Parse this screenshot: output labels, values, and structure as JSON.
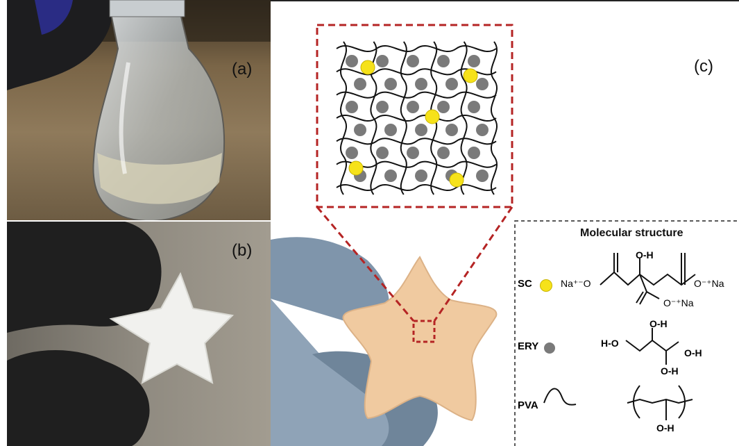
{
  "panels": {
    "a": {
      "label": "(a)"
    },
    "b": {
      "label": "(b)"
    },
    "c": {
      "label": "(c)"
    }
  },
  "legend": {
    "title": "Molecular structure",
    "sc": {
      "label": "SC",
      "na_left": "Na⁺⁻O",
      "oh_top": "O-H",
      "o_right": "O⁻⁺Na",
      "o_bottom": "O⁻⁺Na"
    },
    "ery": {
      "label": "ERY",
      "oh_top": "O-H",
      "ho_left": "H-O",
      "oh_right": "O-H",
      "oh_bottom": "O-H"
    },
    "pva": {
      "label": "PVA",
      "oh_bottom": "O-H"
    }
  },
  "colors": {
    "sc_dot": "#f6e21a",
    "ery_dot": "#7a7a7a",
    "zoom_box": "#b52424",
    "star_b": "#f1f1ee",
    "star_c": "#f0caa0",
    "glove_black": "#1f1f1f",
    "glove_blue": "#7f95ab"
  }
}
